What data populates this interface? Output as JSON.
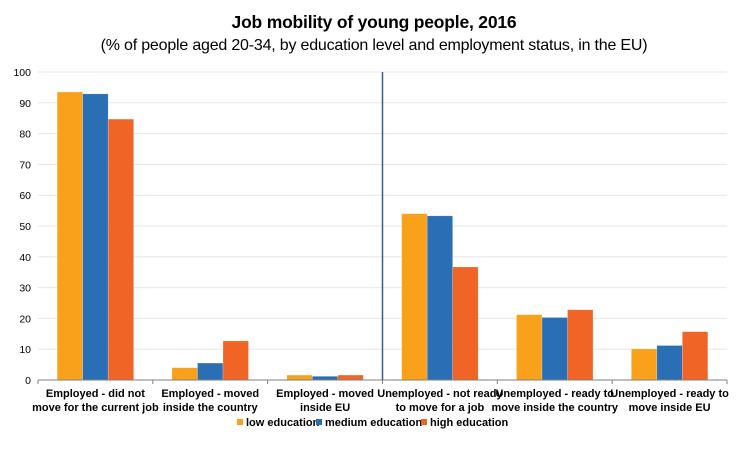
{
  "chart_data": {
    "type": "bar",
    "title": "Job mobility of young people, 2016",
    "subtitle": "(% of people aged 20-34, by education level and employment status, in the EU)",
    "xlabel": "",
    "ylabel": "",
    "ylim": [
      0,
      100
    ],
    "yticks": [
      0,
      10,
      20,
      30,
      40,
      50,
      60,
      70,
      80,
      90,
      100
    ],
    "grid": true,
    "legend_position": "bottom-center",
    "categories": [
      [
        "Employed - did not",
        "move for the current job"
      ],
      [
        "Employed - moved",
        "inside the country"
      ],
      [
        "Employed - moved",
        "inside EU"
      ],
      [
        "Unemployed - not ready",
        "to move for a job"
      ],
      [
        "Unemployed - ready to",
        "move inside the country"
      ],
      [
        "Unemployed - ready to",
        "move inside EU"
      ]
    ],
    "divider_after_category": 3,
    "series": [
      {
        "name": "low education",
        "color": "#F9A11B",
        "values": [
          93.5,
          4.0,
          1.6,
          54.0,
          21.2,
          10.1
        ]
      },
      {
        "name": "medium education",
        "color": "#2A6EB5",
        "values": [
          92.9,
          5.5,
          1.2,
          53.3,
          20.3,
          11.2
        ]
      },
      {
        "name": "high education",
        "color": "#F06526",
        "values": [
          84.7,
          12.7,
          1.6,
          36.7,
          22.8,
          15.7
        ]
      }
    ],
    "colors": {
      "grid": "#E6E6E6",
      "axis": "#7F7F7F",
      "divider": "#3B5E8C"
    }
  }
}
